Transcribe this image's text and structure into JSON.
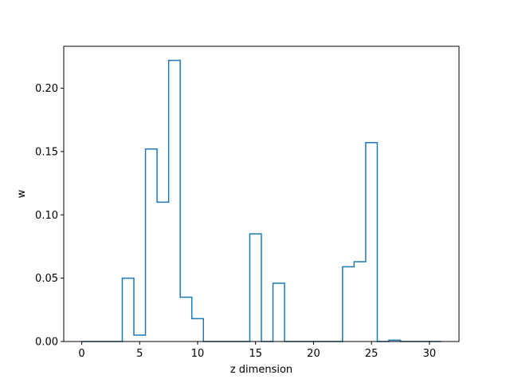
{
  "chart_data": {
    "type": "line",
    "drawstyle": "steps-mid",
    "title": "",
    "xlabel": "z dimension",
    "ylabel": "w",
    "xlim": [
      -1.55,
      32.55
    ],
    "ylim": [
      0.0,
      0.2331
    ],
    "xticks": [
      0,
      5,
      10,
      15,
      20,
      25,
      30
    ],
    "yticks": [
      0.0,
      0.05,
      0.1,
      0.15,
      0.2
    ],
    "xtick_labels": [
      "0",
      "5",
      "10",
      "15",
      "20",
      "25",
      "30"
    ],
    "ytick_labels": [
      "0.00",
      "0.05",
      "0.10",
      "0.15",
      "0.20"
    ],
    "grid": false,
    "series": [
      {
        "color": "#1f77b4",
        "x": [
          0,
          1,
          2,
          3,
          4,
          5,
          6,
          7,
          8,
          9,
          10,
          11,
          12,
          13,
          14,
          15,
          16,
          17,
          18,
          19,
          20,
          21,
          22,
          23,
          24,
          25,
          26,
          27,
          28,
          29,
          30,
          31
        ],
        "values": [
          0,
          0,
          0,
          0,
          0.05,
          0.005,
          0.152,
          0.11,
          0.222,
          0.035,
          0.018,
          0,
          0,
          0,
          0,
          0.085,
          0,
          0.046,
          0,
          0,
          0,
          0,
          0,
          0.059,
          0.063,
          0.157,
          0,
          0.001,
          0,
          0,
          0,
          0
        ]
      }
    ]
  }
}
